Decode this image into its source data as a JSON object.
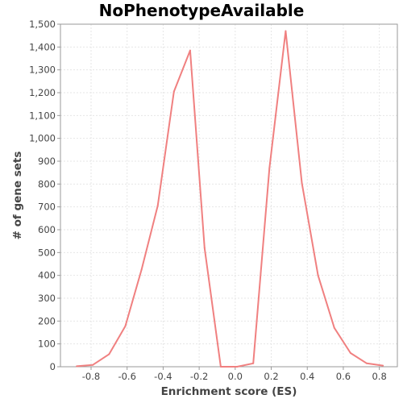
{
  "chart_data": {
    "type": "line",
    "title": "NoPhenotypeAvailable",
    "xlabel": "Enrichment score (ES)",
    "ylabel": "# of gene sets",
    "xlim": [
      -0.97,
      0.9
    ],
    "ylim": [
      0,
      1500
    ],
    "x_ticks": [
      -0.8,
      -0.6,
      -0.4,
      -0.2,
      0.0,
      0.2,
      0.4,
      0.6,
      0.8
    ],
    "x_tick_labels": [
      "-0.8",
      "-0.6",
      "-0.4",
      "-0.2",
      "0.0",
      "0.2",
      "0.4",
      "0.6",
      "0.8"
    ],
    "y_ticks": [
      0,
      100,
      200,
      300,
      400,
      500,
      600,
      700,
      800,
      900,
      1000,
      1100,
      1200,
      1300,
      1400,
      1500
    ],
    "y_tick_labels": [
      "0",
      "100",
      "200",
      "300",
      "400",
      "500",
      "600",
      "700",
      "800",
      "900",
      "1,000",
      "1,100",
      "1,200",
      "1,300",
      "1,400",
      "1,500"
    ],
    "grid": true,
    "legend": "none",
    "series": [
      {
        "color": "#f08080",
        "x": [
          -0.88,
          -0.79,
          -0.7,
          -0.61,
          -0.52,
          -0.43,
          -0.34,
          -0.25,
          -0.17,
          -0.08,
          0.01,
          0.1,
          0.19,
          0.28,
          0.37,
          0.46,
          0.55,
          0.64,
          0.73,
          0.82
        ],
        "y": [
          2,
          8,
          55,
          178,
          425,
          705,
          1205,
          1385,
          520,
          0,
          0,
          15,
          870,
          1470,
          805,
          400,
          170,
          60,
          15,
          5
        ]
      }
    ]
  }
}
